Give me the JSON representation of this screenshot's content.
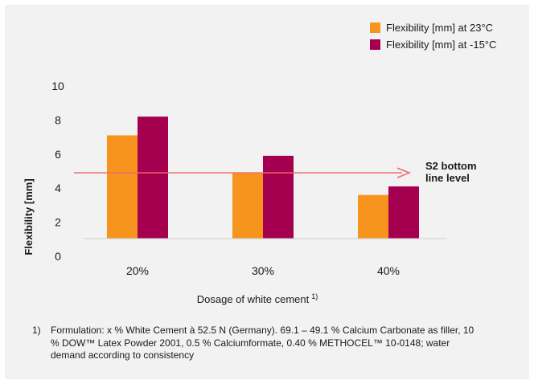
{
  "chart_data": {
    "type": "bar",
    "categories": [
      "20%",
      "30%",
      "40%"
    ],
    "series": [
      {
        "name": "Flexibility [mm] at 23°C",
        "values": [
          7.1,
          4.9,
          3.6
        ],
        "color": "#f7941d"
      },
      {
        "name": "Flexibility [mm] at -15°C",
        "values": [
          8.2,
          5.9,
          4.1
        ],
        "color": "#a50050"
      }
    ],
    "ylabel": "Flexibility [mm]",
    "xlabel": "Dosage of white cement",
    "xlabel_superscript": "1)",
    "ylim": [
      0,
      10
    ],
    "yticks": [
      0,
      2,
      4,
      6,
      8,
      10
    ],
    "grid": false,
    "legend_position": "top-right",
    "reference_line": {
      "y": 4.9,
      "label_line1": "S2 bottom",
      "label_line2": "line level",
      "color": "#f06a6a"
    }
  },
  "footnote": {
    "number": "1)",
    "text": "Formulation: x % White Cement à 52.5 N (Germany). 69.1 – 49.1 % Calcium Carbonate as filler, 10 % DOW™ Latex Powder 2001, 0.5 % Calciumformate, 0.40 % METHOCEL™ 10-0148; water demand according to consistency"
  }
}
